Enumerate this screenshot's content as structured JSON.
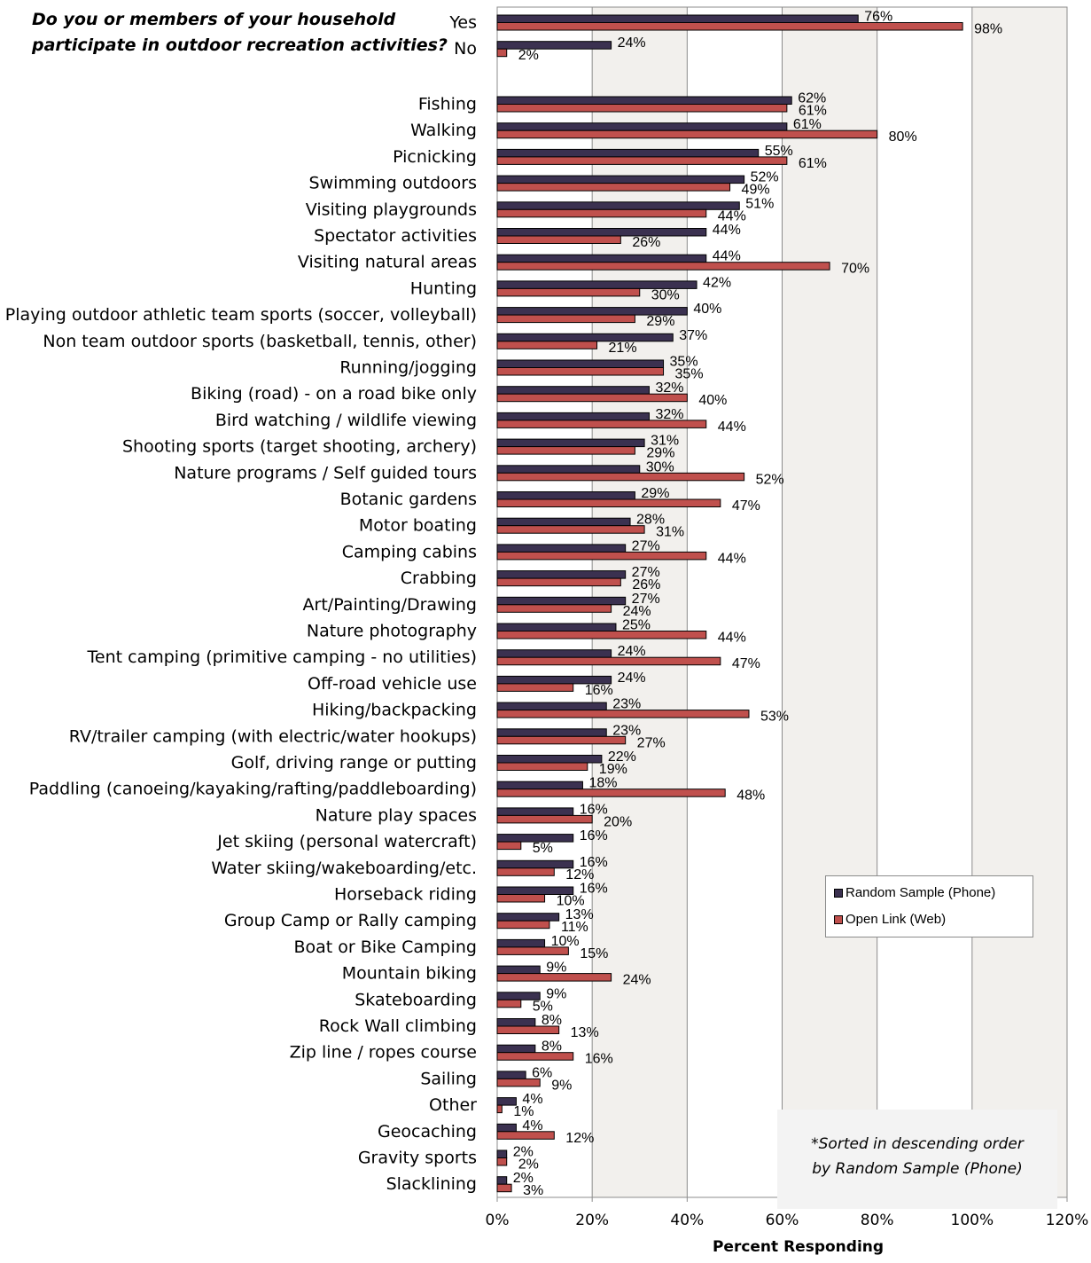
{
  "question": "Do you or members of your household participate in outdoor recreation activities?",
  "note": {
    "line1": "*Sorted in descending order",
    "line2": "by Random Sample (Phone)"
  },
  "legend": {
    "phone": "Random Sample (Phone)",
    "web": "Open Link (Web)"
  },
  "colors": {
    "phone": "#3b3150",
    "web": "#c0504d",
    "plot_bg": "#f2f0ed"
  },
  "chart_data": {
    "type": "bar",
    "orientation": "horizontal",
    "xlabel": "Percent Responding",
    "xlim": [
      0,
      120
    ],
    "xticks": [
      0,
      20,
      40,
      60,
      80,
      100,
      120
    ],
    "xtick_labels": [
      "0%",
      "20%",
      "40%",
      "60%",
      "80%",
      "100%",
      "120%"
    ],
    "grid": "vertical",
    "legend_position": "lower-right",
    "groups": [
      {
        "categories": [
          "Yes",
          "No"
        ],
        "series": [
          {
            "name": "Random Sample (Phone)",
            "values": [
              76,
              24
            ]
          },
          {
            "name": "Open Link (Web)",
            "values": [
              98,
              2
            ]
          }
        ]
      },
      {
        "categories": [
          "Fishing",
          "Walking",
          "Picnicking",
          "Swimming outdoors",
          "Visiting playgrounds",
          "Spectator activities",
          "Visiting natural areas",
          "Hunting",
          "Playing outdoor athletic team sports (soccer, volleyball)",
          "Non team outdoor sports (basketball, tennis, other)",
          "Running/jogging",
          "Biking (road) - on a road bike only",
          "Bird watching / wildlife viewing",
          "Shooting sports (target shooting, archery)",
          "Nature programs / Self guided tours",
          "Botanic gardens",
          "Motor boating",
          "Camping cabins",
          "Crabbing",
          "Art/Painting/Drawing",
          "Nature photography",
          "Tent camping (primitive camping - no utilities)",
          "Off-road vehicle use",
          "Hiking/backpacking",
          "RV/trailer camping (with electric/water hookups)",
          "Golf, driving range or putting",
          "Paddling (canoeing/kayaking/rafting/paddleboarding)",
          "Nature play spaces",
          "Jet skiing (personal watercraft)",
          "Water skiing/wakeboarding/etc.",
          "Horseback riding",
          "Group Camp or Rally camping",
          "Boat or Bike Camping",
          "Mountain biking",
          "Skateboarding",
          "Rock Wall climbing",
          "Zip line / ropes course",
          "Sailing",
          "Other",
          "Geocaching",
          "Gravity sports",
          "Slacklining"
        ],
        "series": [
          {
            "name": "Random Sample (Phone)",
            "values": [
              62,
              61,
              55,
              52,
              51,
              44,
              44,
              42,
              40,
              37,
              35,
              32,
              32,
              31,
              30,
              29,
              28,
              27,
              27,
              27,
              25,
              24,
              24,
              23,
              23,
              22,
              18,
              16,
              16,
              16,
              16,
              13,
              10,
              9,
              9,
              8,
              8,
              6,
              4,
              4,
              2,
              2
            ]
          },
          {
            "name": "Open Link (Web)",
            "values": [
              61,
              80,
              61,
              49,
              44,
              26,
              70,
              30,
              29,
              21,
              35,
              40,
              44,
              29,
              52,
              47,
              31,
              44,
              26,
              24,
              44,
              47,
              16,
              53,
              27,
              19,
              48,
              20,
              5,
              12,
              10,
              11,
              15,
              24,
              5,
              13,
              16,
              9,
              1,
              12,
              2,
              3
            ]
          }
        ]
      }
    ]
  }
}
